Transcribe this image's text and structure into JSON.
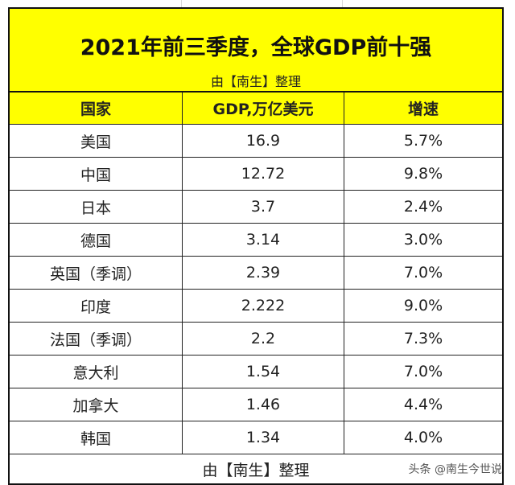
{
  "title": "2021年前三季度，全球GDP前十强",
  "subtitle": "由【南生】整理",
  "headers": [
    "国家",
    "GDP,万亿美元",
    "增速"
  ],
  "rows": [
    [
      "美国",
      "16.9",
      "5.7%"
    ],
    [
      "中国",
      "12.72",
      "9.8%"
    ],
    [
      "日本",
      "3.7",
      "2.4%"
    ],
    [
      "德国",
      "3.14",
      "3.0%"
    ],
    [
      "英国（季调）",
      "2.39",
      "7.0%"
    ],
    [
      "印度",
      "2.222",
      "9.0%"
    ],
    [
      "法国（季调）",
      "2.2",
      "7.3%"
    ],
    [
      "意大利",
      "1.54",
      "7.0%"
    ],
    [
      "加拿大",
      "1.46",
      "4.4%"
    ],
    [
      "韩国",
      "1.34",
      "4.0%"
    ]
  ],
  "footer": "由【南生】整理",
  "watermark": "头条 @南生今世说",
  "colors": {
    "header_bg": "#ffff00",
    "border": "#111111"
  }
}
